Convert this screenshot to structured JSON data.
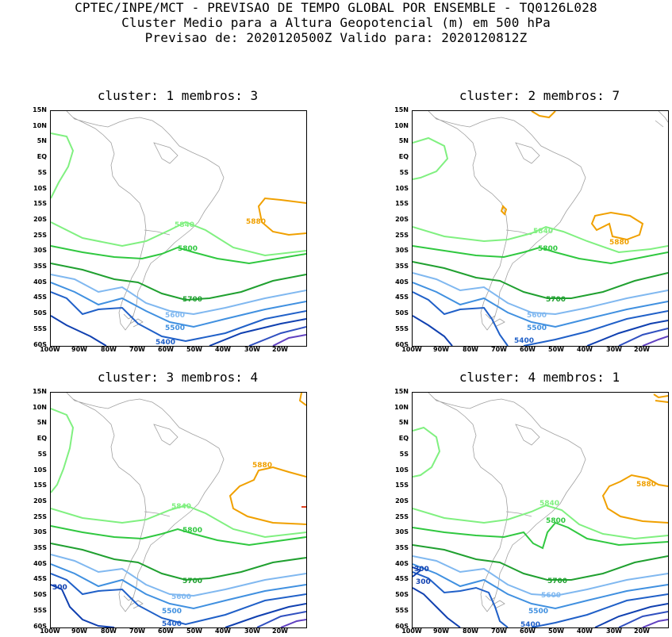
{
  "header": {
    "line1": "CPTEC/INPE/MCT - PREVISAO DE TEMPO GLOBAL POR ENSEMBLE - TQ0126L028",
    "line2": "Cluster Medio para a Altura Geopotencial (m) em 500 hPa",
    "line3": "Previsao de: 2020120500Z   Valido para: 2020120812Z"
  },
  "lat_labels": [
    "15N",
    "10N",
    "5N",
    "EQ",
    "5S",
    "10S",
    "15S",
    "20S",
    "25S",
    "30S",
    "35S",
    "40S",
    "45S",
    "50S",
    "55S",
    "60S"
  ],
  "lon_labels": [
    "100W",
    "90W",
    "80W",
    "70W",
    "60W",
    "50W",
    "40W",
    "30W",
    "20W"
  ],
  "colors": {
    "c5880": "#f0a000",
    "c5840": "#80f080",
    "c5800": "#30c840",
    "c5700": "#20a030",
    "c5600": "#80b8f0",
    "c5500": "#4090e0",
    "c5400": "#2060c8",
    "c5300": "#1040b0",
    "c5200": "#3050c0",
    "c5100": "#6040c0",
    "c5000": "#8050c8",
    "land": "#a0a0a0"
  },
  "panels": [
    {
      "title": "cluster: 1   membros: 3",
      "labels": {
        "l5880": "5880",
        "l5840": "5840",
        "l5800": "5800",
        "l5700": "5700",
        "l5600": "5600",
        "l5500": "5500",
        "l5400": "5400"
      }
    },
    {
      "title": "cluster: 2   membros: 7",
      "labels": {
        "l5880": "5880",
        "l5840": "5840",
        "l5800": "5800",
        "l5700": "5700",
        "l5600": "5600",
        "l5500": "5500",
        "l5400": "5400"
      }
    },
    {
      "title": "cluster: 3   membros: 4",
      "labels": {
        "l5880": "5880",
        "l5840": "5840",
        "l5800": "5800",
        "l5700": "5700",
        "l5600": "5600",
        "l5500": "5500",
        "l5400": "5400",
        "l5300": "300"
      }
    },
    {
      "title": "cluster: 4   membros: 1",
      "labels": {
        "l5880": "5880",
        "l5840": "5840",
        "l5800": "5800",
        "l5700": "5700",
        "l5600": "5600",
        "l5500": "5500",
        "l5400": "5400",
        "l5300a": "300",
        "l5300b": "300"
      }
    }
  ]
}
